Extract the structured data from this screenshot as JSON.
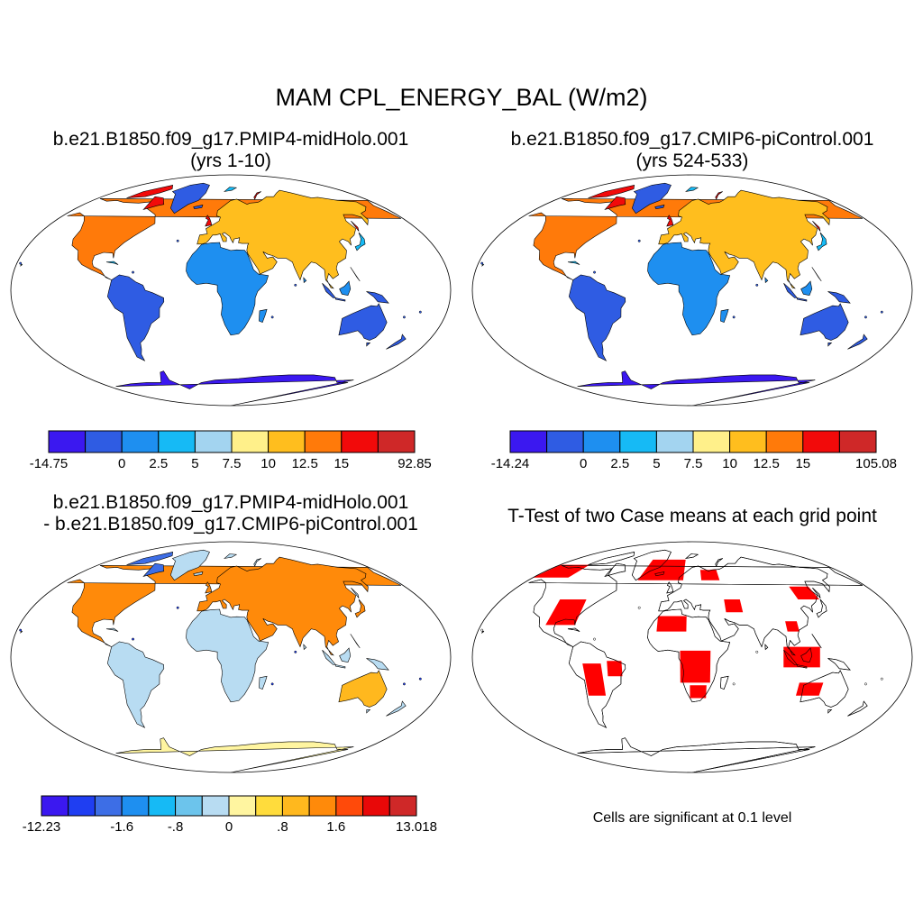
{
  "title": "MAM CPL_ENERGY_BAL (W/m2)",
  "panels": [
    {
      "id": "midholo",
      "line1": "b.e21.B1850.f09_g17.PMIP4-midHolo.001",
      "line2": "(yrs 1-10)"
    },
    {
      "id": "picontrol",
      "line1": "b.e21.B1850.f09_g17.CMIP6-piControl.001",
      "line2": "(yrs 524-533)"
    },
    {
      "id": "difference",
      "line1": "b.e21.B1850.f09_g17.PMIP4-midHolo.001",
      "line2": "- b.e21.B1850.f09_g17.CMIP6-piControl.001"
    },
    {
      "id": "ttest",
      "line1": "T-Test of two Case means at each grid point",
      "note": "Cells are significant at 0.1 level"
    }
  ],
  "colorbars": [
    {
      "id": "midholo-bar",
      "colors": [
        "#3b18f0",
        "#2f5ce3",
        "#1e8ff0",
        "#16baf5",
        "#a3d4f0",
        "#fff08a",
        "#ffbe1e",
        "#ff7a0a",
        "#f20a0a",
        "#cf2828"
      ],
      "labels": [
        "-14.75",
        "0",
        "2.5",
        "5",
        "7.5",
        "10",
        "12.5",
        "15",
        "92.85"
      ],
      "label_edges": [
        0,
        2,
        3,
        4,
        5,
        6,
        7,
        8,
        10
      ]
    },
    {
      "id": "picontrol-bar",
      "colors": [
        "#3b18f0",
        "#2f5ce3",
        "#1e8ff0",
        "#16baf5",
        "#a3d4f0",
        "#fff08a",
        "#ffbe1e",
        "#ff7a0a",
        "#f20a0a",
        "#cf2828"
      ],
      "labels": [
        "-14.24",
        "0",
        "2.5",
        "5",
        "7.5",
        "10",
        "12.5",
        "15",
        "105.08"
      ],
      "label_edges": [
        0,
        2,
        3,
        4,
        5,
        6,
        7,
        8,
        10
      ]
    },
    {
      "id": "difference-bar",
      "colors": [
        "#3b18f0",
        "#1f3ef2",
        "#3d6ee6",
        "#1e8ff0",
        "#16baf5",
        "#6cc4ec",
        "#b8dcf2",
        "#fff5a0",
        "#ffdc3c",
        "#ffb81e",
        "#ff8a0a",
        "#ff4a0a",
        "#e80808",
        "#cf2828"
      ],
      "labels": [
        "-12.23",
        "-1.6",
        "-.8",
        "0",
        ".8",
        "1.6",
        "13.018"
      ],
      "label_edges": [
        0,
        3,
        5,
        7,
        9,
        11,
        14
      ]
    }
  ],
  "field_colors": {
    "ocean": "#ffffff",
    "outline": "#000000",
    "significant": "#ff0000"
  }
}
